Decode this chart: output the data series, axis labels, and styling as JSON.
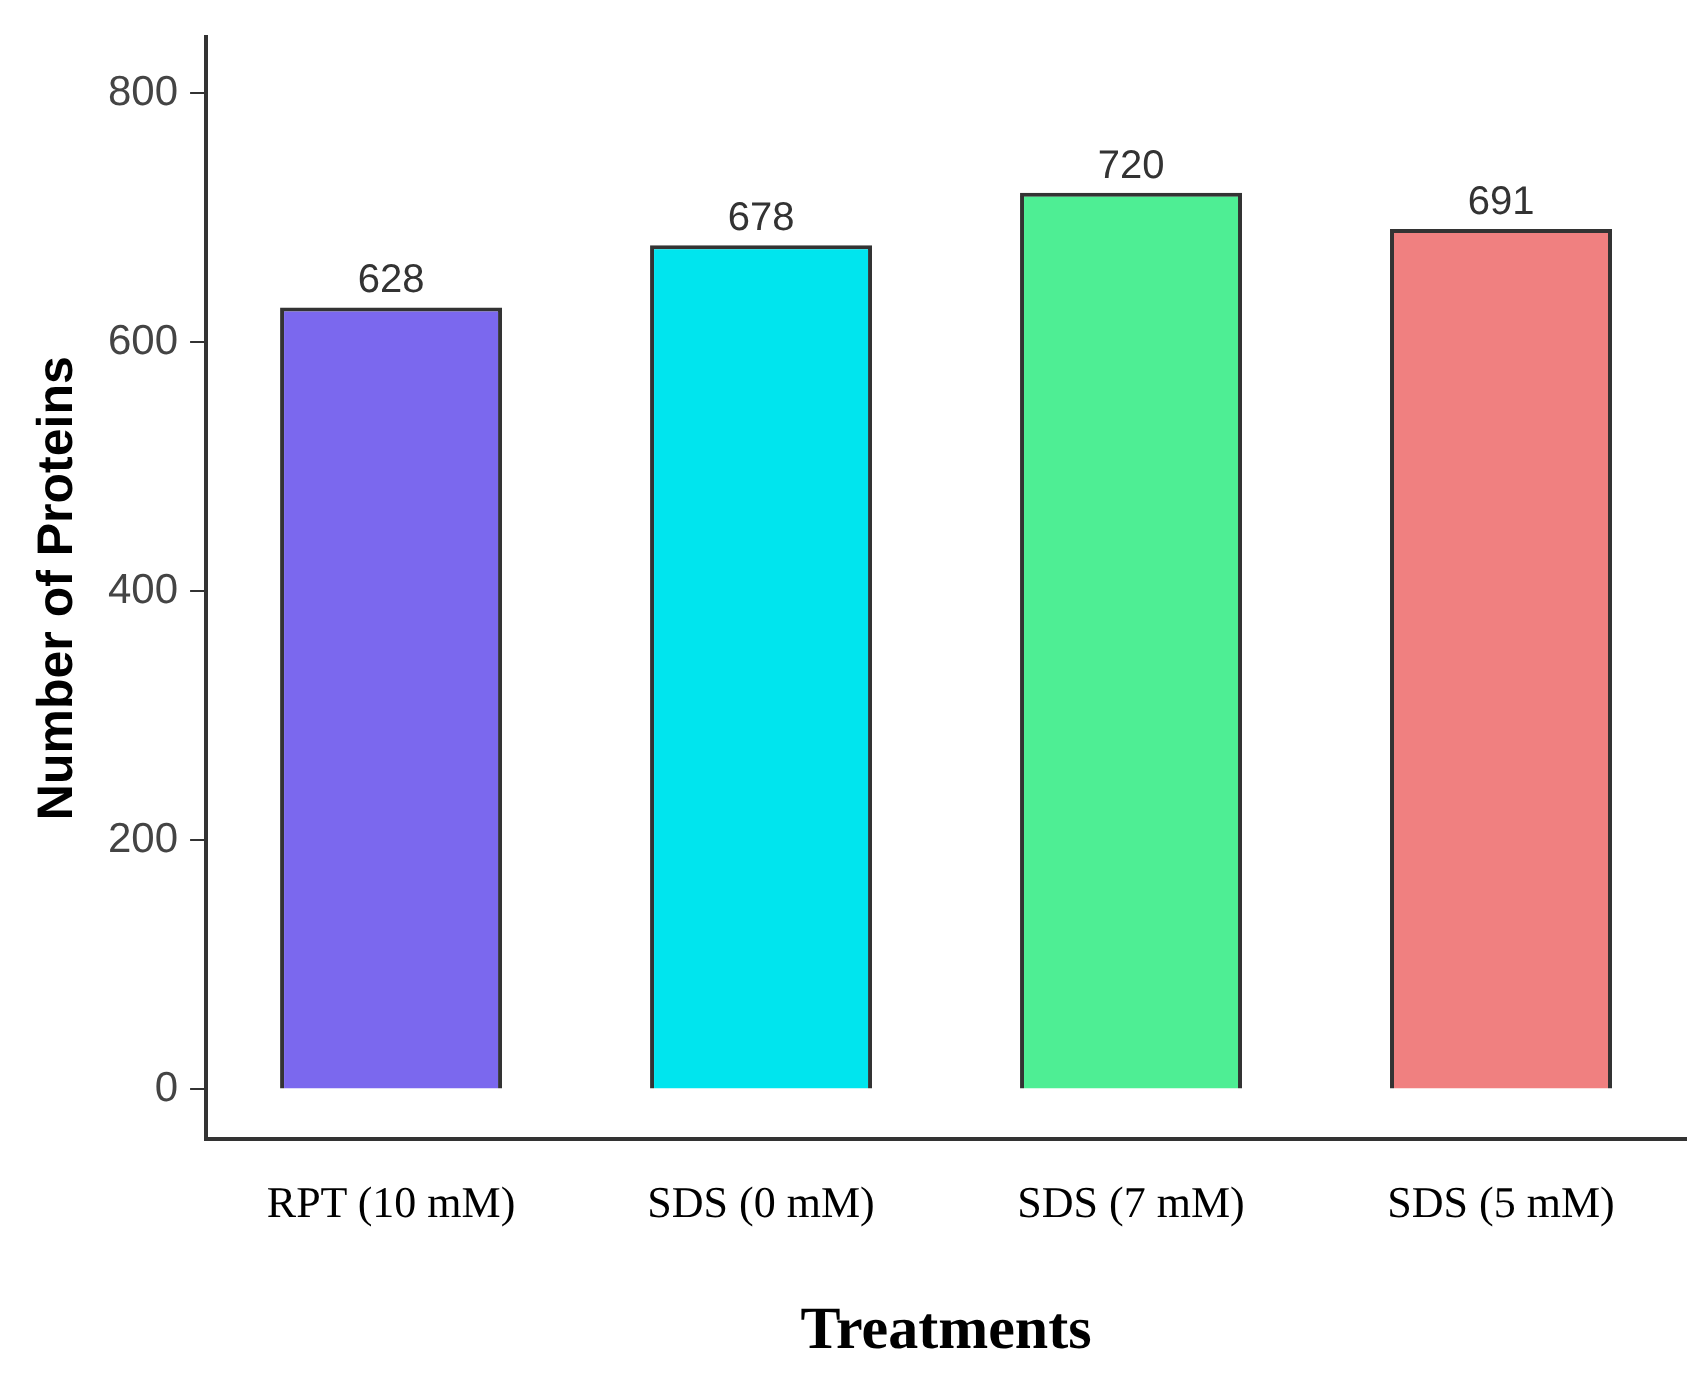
{
  "chart_data": {
    "type": "bar",
    "xlabel": "Treatments",
    "ylabel": "Number of Proteins",
    "categories": [
      "RPT (10 mM)",
      "SDS (0 mM)",
      "SDS (7 mM)",
      "SDS (5 mM)"
    ],
    "values": [
      628,
      678,
      720,
      691
    ],
    "colors": [
      "#7b68ee",
      "#00e5ee",
      "#4eee94",
      "#f08080"
    ],
    "ylim": [
      -40,
      845
    ],
    "yticks": [
      0,
      200,
      400,
      600,
      800
    ],
    "grid": false,
    "legend": false,
    "data_labels": true
  }
}
